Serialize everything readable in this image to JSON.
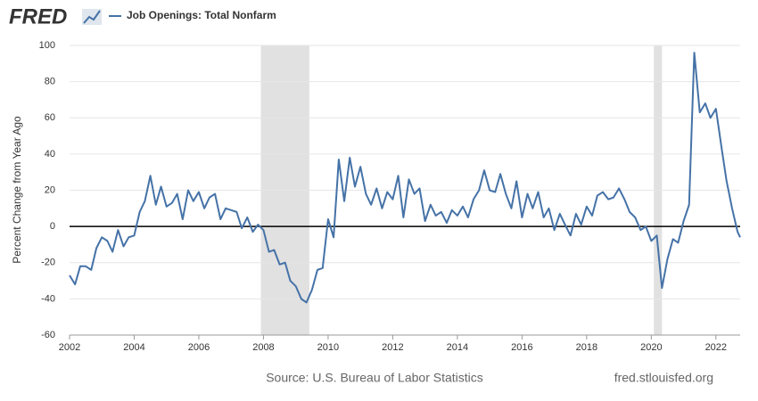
{
  "logo": "FRED",
  "chart_data": {
    "type": "line",
    "y_label": "Percent Change from Year Ago",
    "source": "Source: U.S. Bureau of Labor Statistics",
    "site": "fred.stlouisfed.org",
    "xlim": [
      2002,
      2022.75
    ],
    "xticks": [
      2002,
      2004,
      2006,
      2008,
      2010,
      2012,
      2014,
      2016,
      2018,
      2020,
      2022
    ],
    "ylim": [
      -60,
      100
    ],
    "yticks": [
      -60,
      -40,
      -20,
      0,
      20,
      40,
      60,
      80,
      100
    ],
    "grid": true,
    "reference_line": 0,
    "recessions": [
      [
        2007.92,
        2009.42
      ],
      [
        2020.08,
        2020.33
      ]
    ],
    "x": [
      2002,
      2002.17,
      2002.33,
      2002.5,
      2002.67,
      2002.83,
      2003,
      2003.17,
      2003.33,
      2003.5,
      2003.67,
      2003.83,
      2004,
      2004.17,
      2004.33,
      2004.5,
      2004.67,
      2004.83,
      2005,
      2005.17,
      2005.33,
      2005.5,
      2005.67,
      2005.83,
      2006,
      2006.17,
      2006.33,
      2006.5,
      2006.67,
      2006.83,
      2007,
      2007.17,
      2007.33,
      2007.5,
      2007.67,
      2007.83,
      2008,
      2008.17,
      2008.33,
      2008.5,
      2008.67,
      2008.83,
      2009,
      2009.17,
      2009.33,
      2009.5,
      2009.67,
      2009.83,
      2010,
      2010.17,
      2010.33,
      2010.5,
      2010.67,
      2010.83,
      2011,
      2011.17,
      2011.33,
      2011.5,
      2011.67,
      2011.83,
      2012,
      2012.17,
      2012.33,
      2012.5,
      2012.67,
      2012.83,
      2013,
      2013.17,
      2013.33,
      2013.5,
      2013.67,
      2013.83,
      2014,
      2014.17,
      2014.33,
      2014.5,
      2014.67,
      2014.83,
      2015,
      2015.17,
      2015.33,
      2015.5,
      2015.67,
      2015.83,
      2016,
      2016.17,
      2016.33,
      2016.5,
      2016.67,
      2016.83,
      2017,
      2017.17,
      2017.33,
      2017.5,
      2017.67,
      2017.83,
      2018,
      2018.17,
      2018.33,
      2018.5,
      2018.67,
      2018.83,
      2019,
      2019.17,
      2019.33,
      2019.5,
      2019.67,
      2019.83,
      2020,
      2020.17,
      2020.33,
      2020.5,
      2020.67,
      2020.83,
      2021,
      2021.17,
      2021.33,
      2021.5,
      2021.67,
      2021.83,
      2022,
      2022.17,
      2022.33,
      2022.5,
      2022.67,
      2022.75
    ],
    "series": [
      {
        "name": "Job Openings: Total Nonfarm",
        "color": "#4572a7",
        "values": [
          -27,
          -32,
          -22,
          -22,
          -24,
          -12,
          -6,
          -8,
          -14,
          -2,
          -11,
          -6,
          -5,
          8,
          14,
          28,
          12,
          22,
          11,
          13,
          18,
          4,
          20,
          14,
          19,
          10,
          16,
          18,
          4,
          10,
          9,
          8,
          -1,
          5,
          -3,
          1,
          -2,
          -14,
          -13,
          -21,
          -20,
          -30,
          -33,
          -40,
          -42,
          -35,
          -24,
          -23,
          4,
          -6,
          37,
          14,
          38,
          22,
          33,
          18,
          12,
          21,
          10,
          19,
          15,
          28,
          5,
          26,
          18,
          21,
          3,
          12,
          6,
          8,
          2,
          9,
          6,
          11,
          5,
          15,
          20,
          31,
          20,
          19,
          29,
          18,
          10,
          25,
          5,
          18,
          10,
          19,
          5,
          10,
          -2,
          7,
          1,
          -5,
          7,
          1,
          11,
          6,
          17,
          19,
          15,
          16,
          21,
          15,
          8,
          5,
          -2,
          0,
          -8,
          -5,
          -34,
          -18,
          -7,
          -9,
          3,
          12,
          96,
          63,
          68,
          60,
          65,
          44,
          25,
          10,
          -3,
          -6
        ]
      }
    ]
  }
}
